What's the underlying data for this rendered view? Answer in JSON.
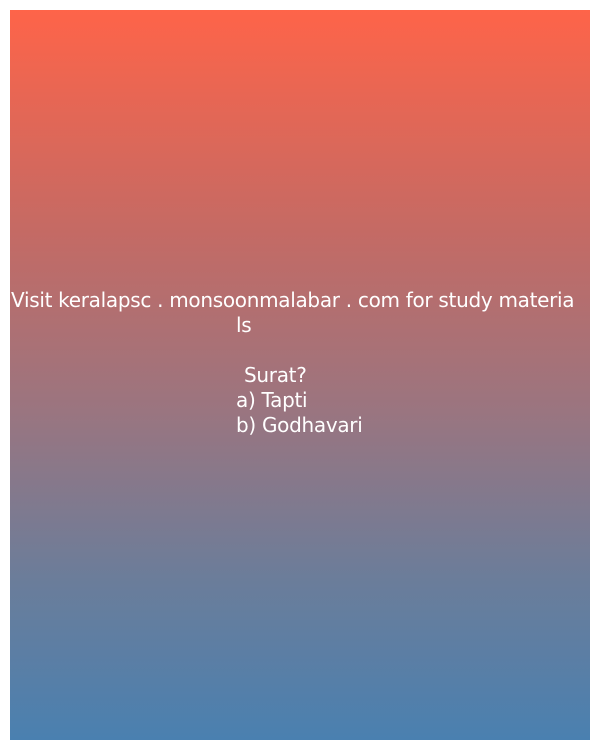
{
  "card": {
    "promo_line_1": "Visit keralapsc . monsoonmalabar . com for study materia",
    "promo_line_2": "ls",
    "question": "Surat?",
    "option_a": "a) Tapti",
    "option_b": "b) Godhavari"
  },
  "colors": {
    "gradient_top": "#fe6449",
    "gradient_bottom": "#4a80b0",
    "text": "#ffffff",
    "page_background": "#ffffff"
  }
}
